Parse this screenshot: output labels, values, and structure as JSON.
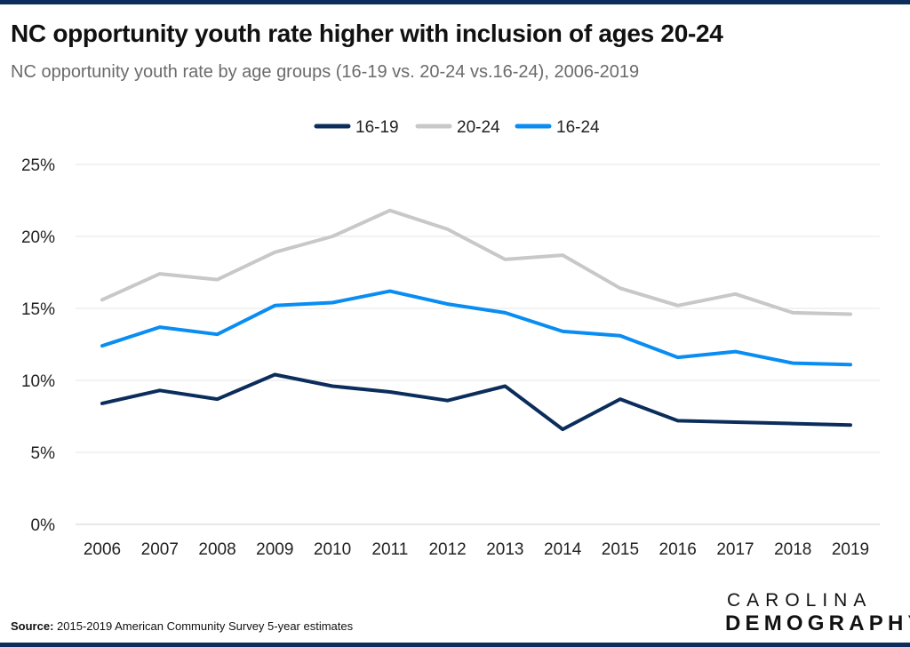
{
  "title": "NC opportunity youth rate higher with inclusion of ages 20-24",
  "subtitle": "NC opportunity youth rate by age groups (16-19 vs. 20-24 vs.16-24), 2006-2019",
  "source": {
    "label": "Source:",
    "text": "2015-2019 American Community Survey 5-year estimates"
  },
  "logo": {
    "line1": "CAROLINA",
    "line2": "DEMOGRAPHY"
  },
  "chart_data": {
    "type": "line",
    "x": [
      "2006",
      "2007",
      "2008",
      "2009",
      "2010",
      "2011",
      "2012",
      "2013",
      "2014",
      "2015",
      "2016",
      "2017",
      "2018",
      "2019"
    ],
    "series": [
      {
        "name": "16-19",
        "color": "#0b2d5b",
        "values": [
          8.4,
          9.3,
          8.7,
          10.4,
          9.6,
          9.2,
          8.6,
          9.6,
          6.6,
          8.7,
          7.2,
          7.1,
          7.0,
          6.9
        ]
      },
      {
        "name": "20-24",
        "color": "#c8c8c8",
        "values": [
          15.6,
          17.4,
          17.0,
          18.9,
          20.0,
          21.8,
          20.5,
          18.4,
          18.7,
          16.4,
          15.2,
          16.0,
          14.7,
          14.6
        ]
      },
      {
        "name": "16-24",
        "color": "#0a8df2",
        "values": [
          12.4,
          13.7,
          13.2,
          15.2,
          15.4,
          16.2,
          15.3,
          14.7,
          13.4,
          13.1,
          11.6,
          12.0,
          11.2,
          11.1
        ]
      }
    ],
    "yticks": [
      "0%",
      "5%",
      "10%",
      "15%",
      "20%",
      "25%"
    ],
    "ylim": [
      0,
      25
    ],
    "grid": true,
    "legend": "top-center"
  }
}
